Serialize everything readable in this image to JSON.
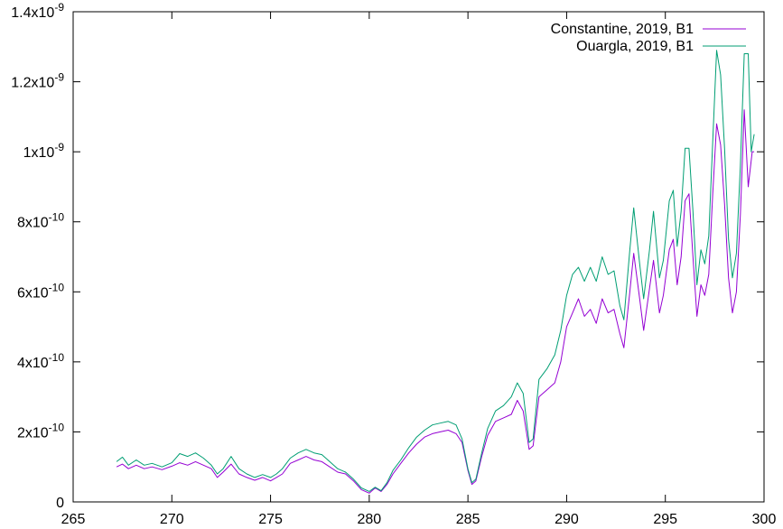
{
  "chart_data": {
    "type": "line",
    "xlim": [
      265,
      300
    ],
    "ylim": [
      0,
      1.4e-09
    ],
    "x_ticks": [
      {
        "value": 265,
        "label": "265"
      },
      {
        "value": 270,
        "label": "270"
      },
      {
        "value": 275,
        "label": "275"
      },
      {
        "value": 280,
        "label": "280"
      },
      {
        "value": 285,
        "label": "285"
      },
      {
        "value": 290,
        "label": "290"
      },
      {
        "value": 295,
        "label": "295"
      },
      {
        "value": 300,
        "label": "300"
      }
    ],
    "y_ticks": [
      {
        "value": 0,
        "mant": "0",
        "exp": ""
      },
      {
        "value": 2e-10,
        "mant": "2x10",
        "exp": "-10"
      },
      {
        "value": 4e-10,
        "mant": "4x10",
        "exp": "-10"
      },
      {
        "value": 6e-10,
        "mant": "6x10",
        "exp": "-10"
      },
      {
        "value": 8e-10,
        "mant": "8x10",
        "exp": "-10"
      },
      {
        "value": 1e-09,
        "mant": "1x10",
        "exp": "-9"
      },
      {
        "value": 1.2e-09,
        "mant": "1.2x10",
        "exp": "-9"
      },
      {
        "value": 1.4e-09,
        "mant": "1.4x10",
        "exp": "-9"
      }
    ],
    "grid": false,
    "legend_position": "top-right",
    "series": [
      {
        "name": "Constantine, 2019, B1",
        "color": "#9400d3",
        "points": [
          [
            267.2,
            1e-10
          ],
          [
            267.5,
            1.08e-10
          ],
          [
            267.8,
            9.5e-11
          ],
          [
            268.2,
            1.05e-10
          ],
          [
            268.6,
            9.5e-11
          ],
          [
            269.0,
            1e-10
          ],
          [
            269.5,
            9.2e-11
          ],
          [
            270.0,
            1.02e-10
          ],
          [
            270.4,
            1.12e-10
          ],
          [
            270.8,
            1.05e-10
          ],
          [
            271.2,
            1.15e-10
          ],
          [
            271.6,
            1.05e-10
          ],
          [
            272.0,
            9.5e-11
          ],
          [
            272.3,
            7e-11
          ],
          [
            272.6,
            8.5e-11
          ],
          [
            273.0,
            1.08e-10
          ],
          [
            273.4,
            8e-11
          ],
          [
            273.8,
            7e-11
          ],
          [
            274.2,
            6.2e-11
          ],
          [
            274.6,
            7e-11
          ],
          [
            275.0,
            6e-11
          ],
          [
            275.3,
            7e-11
          ],
          [
            275.6,
            8e-11
          ],
          [
            276.0,
            1.1e-10
          ],
          [
            276.4,
            1.2e-10
          ],
          [
            276.8,
            1.3e-10
          ],
          [
            277.2,
            1.2e-10
          ],
          [
            277.6,
            1.15e-10
          ],
          [
            278.0,
            1e-10
          ],
          [
            278.4,
            8.5e-11
          ],
          [
            278.8,
            8e-11
          ],
          [
            279.2,
            6e-11
          ],
          [
            279.6,
            3.5e-11
          ],
          [
            280.0,
            2.5e-11
          ],
          [
            280.3,
            4e-11
          ],
          [
            280.6,
            3e-11
          ],
          [
            280.9,
            5e-11
          ],
          [
            281.2,
            8e-11
          ],
          [
            281.6,
            1.1e-10
          ],
          [
            282.0,
            1.4e-10
          ],
          [
            282.4,
            1.65e-10
          ],
          [
            282.8,
            1.85e-10
          ],
          [
            283.2,
            1.95e-10
          ],
          [
            283.6,
            2e-10
          ],
          [
            284.0,
            2.05e-10
          ],
          [
            284.4,
            1.95e-10
          ],
          [
            284.7,
            1.7e-10
          ],
          [
            285.0,
            9e-11
          ],
          [
            285.2,
            5e-11
          ],
          [
            285.4,
            6e-11
          ],
          [
            285.7,
            1.3e-10
          ],
          [
            286.0,
            1.9e-10
          ],
          [
            286.4,
            2.3e-10
          ],
          [
            286.8,
            2.4e-10
          ],
          [
            287.2,
            2.5e-10
          ],
          [
            287.5,
            2.9e-10
          ],
          [
            287.8,
            2.6e-10
          ],
          [
            288.1,
            1.5e-10
          ],
          [
            288.3,
            1.6e-10
          ],
          [
            288.6,
            3e-10
          ],
          [
            289.0,
            3.2e-10
          ],
          [
            289.4,
            3.4e-10
          ],
          [
            289.7,
            4e-10
          ],
          [
            290.0,
            5e-10
          ],
          [
            290.3,
            5.4e-10
          ],
          [
            290.6,
            5.8e-10
          ],
          [
            290.9,
            5.3e-10
          ],
          [
            291.2,
            5.5e-10
          ],
          [
            291.5,
            5.1e-10
          ],
          [
            291.8,
            5.8e-10
          ],
          [
            292.1,
            5.4e-10
          ],
          [
            292.4,
            5.5e-10
          ],
          [
            292.7,
            4.8e-10
          ],
          [
            292.9,
            4.4e-10
          ],
          [
            293.2,
            6e-10
          ],
          [
            293.4,
            7.1e-10
          ],
          [
            293.7,
            5.8e-10
          ],
          [
            293.9,
            4.9e-10
          ],
          [
            294.2,
            6.1e-10
          ],
          [
            294.4,
            6.9e-10
          ],
          [
            294.7,
            5.4e-10
          ],
          [
            294.9,
            5.9e-10
          ],
          [
            295.2,
            7.2e-10
          ],
          [
            295.4,
            7.5e-10
          ],
          [
            295.6,
            6.2e-10
          ],
          [
            295.8,
            7e-10
          ],
          [
            296.0,
            8.6e-10
          ],
          [
            296.2,
            8.8e-10
          ],
          [
            296.4,
            7e-10
          ],
          [
            296.6,
            5.3e-10
          ],
          [
            296.8,
            6.2e-10
          ],
          [
            297.0,
            5.9e-10
          ],
          [
            297.2,
            6.5e-10
          ],
          [
            297.4,
            8.8e-10
          ],
          [
            297.6,
            1.08e-09
          ],
          [
            297.8,
            1.02e-09
          ],
          [
            298.0,
            8.5e-10
          ],
          [
            298.2,
            6.4e-10
          ],
          [
            298.4,
            5.4e-10
          ],
          [
            298.6,
            6e-10
          ],
          [
            298.8,
            8.2e-10
          ],
          [
            299.0,
            1.12e-09
          ],
          [
            299.2,
            9e-10
          ],
          [
            299.4,
            1e-09
          ],
          [
            299.5,
            1e-09
          ]
        ]
      },
      {
        "name": "Ouargla, 2019, B1",
        "color": "#009e73",
        "points": [
          [
            267.2,
            1.15e-10
          ],
          [
            267.5,
            1.28e-10
          ],
          [
            267.8,
            1.05e-10
          ],
          [
            268.2,
            1.2e-10
          ],
          [
            268.6,
            1.05e-10
          ],
          [
            269.0,
            1.1e-10
          ],
          [
            269.5,
            1e-10
          ],
          [
            270.0,
            1.12e-10
          ],
          [
            270.4,
            1.38e-10
          ],
          [
            270.8,
            1.3e-10
          ],
          [
            271.2,
            1.4e-10
          ],
          [
            271.6,
            1.25e-10
          ],
          [
            272.0,
            1.05e-10
          ],
          [
            272.3,
            8e-11
          ],
          [
            272.6,
            9.5e-11
          ],
          [
            273.0,
            1.3e-10
          ],
          [
            273.4,
            9.5e-11
          ],
          [
            273.8,
            8e-11
          ],
          [
            274.2,
            7e-11
          ],
          [
            274.6,
            7.8e-11
          ],
          [
            275.0,
            7e-11
          ],
          [
            275.3,
            8e-11
          ],
          [
            275.6,
            9.5e-11
          ],
          [
            276.0,
            1.25e-10
          ],
          [
            276.4,
            1.4e-10
          ],
          [
            276.8,
            1.5e-10
          ],
          [
            277.2,
            1.4e-10
          ],
          [
            277.6,
            1.35e-10
          ],
          [
            278.0,
            1.15e-10
          ],
          [
            278.4,
            9.5e-11
          ],
          [
            278.8,
            8.5e-11
          ],
          [
            279.2,
            6.5e-11
          ],
          [
            279.6,
            4e-11
          ],
          [
            280.0,
            3e-11
          ],
          [
            280.3,
            4.2e-11
          ],
          [
            280.6,
            3.2e-11
          ],
          [
            280.9,
            5.5e-11
          ],
          [
            281.2,
            9e-11
          ],
          [
            281.6,
            1.2e-10
          ],
          [
            282.0,
            1.55e-10
          ],
          [
            282.4,
            1.85e-10
          ],
          [
            282.8,
            2.05e-10
          ],
          [
            283.2,
            2.2e-10
          ],
          [
            283.6,
            2.25e-10
          ],
          [
            284.0,
            2.3e-10
          ],
          [
            284.4,
            2.2e-10
          ],
          [
            284.7,
            1.8e-10
          ],
          [
            285.0,
            9.5e-11
          ],
          [
            285.2,
            5.5e-11
          ],
          [
            285.4,
            6.5e-11
          ],
          [
            285.7,
            1.4e-10
          ],
          [
            286.0,
            2.1e-10
          ],
          [
            286.4,
            2.6e-10
          ],
          [
            286.8,
            2.75e-10
          ],
          [
            287.2,
            3e-10
          ],
          [
            287.5,
            3.4e-10
          ],
          [
            287.8,
            3.1e-10
          ],
          [
            288.1,
            1.7e-10
          ],
          [
            288.3,
            1.8e-10
          ],
          [
            288.6,
            3.5e-10
          ],
          [
            289.0,
            3.8e-10
          ],
          [
            289.4,
            4.2e-10
          ],
          [
            289.7,
            4.9e-10
          ],
          [
            290.0,
            5.9e-10
          ],
          [
            290.3,
            6.5e-10
          ],
          [
            290.6,
            6.7e-10
          ],
          [
            290.9,
            6.3e-10
          ],
          [
            291.2,
            6.7e-10
          ],
          [
            291.5,
            6.3e-10
          ],
          [
            291.8,
            7e-10
          ],
          [
            292.1,
            6.5e-10
          ],
          [
            292.4,
            6.6e-10
          ],
          [
            292.7,
            5.6e-10
          ],
          [
            292.9,
            5.2e-10
          ],
          [
            293.2,
            7.2e-10
          ],
          [
            293.4,
            8.4e-10
          ],
          [
            293.7,
            6.8e-10
          ],
          [
            293.9,
            5.8e-10
          ],
          [
            294.2,
            7.2e-10
          ],
          [
            294.4,
            8.3e-10
          ],
          [
            294.7,
            6.4e-10
          ],
          [
            294.9,
            6.9e-10
          ],
          [
            295.2,
            8.6e-10
          ],
          [
            295.4,
            8.9e-10
          ],
          [
            295.6,
            7.3e-10
          ],
          [
            295.8,
            8.3e-10
          ],
          [
            296.0,
            1.01e-09
          ],
          [
            296.2,
            1.01e-09
          ],
          [
            296.4,
            8.3e-10
          ],
          [
            296.6,
            6.2e-10
          ],
          [
            296.8,
            7.2e-10
          ],
          [
            297.0,
            6.8e-10
          ],
          [
            297.2,
            7.6e-10
          ],
          [
            297.4,
            1.03e-09
          ],
          [
            297.6,
            1.29e-09
          ],
          [
            297.8,
            1.22e-09
          ],
          [
            298.0,
            1.01e-09
          ],
          [
            298.2,
            7.5e-10
          ],
          [
            298.4,
            6.4e-10
          ],
          [
            298.6,
            7.1e-10
          ],
          [
            298.8,
            9.6e-10
          ],
          [
            299.0,
            1.28e-09
          ],
          [
            299.2,
            1.28e-09
          ],
          [
            299.35,
            1e-09
          ],
          [
            299.5,
            1.05e-09
          ]
        ]
      }
    ]
  }
}
